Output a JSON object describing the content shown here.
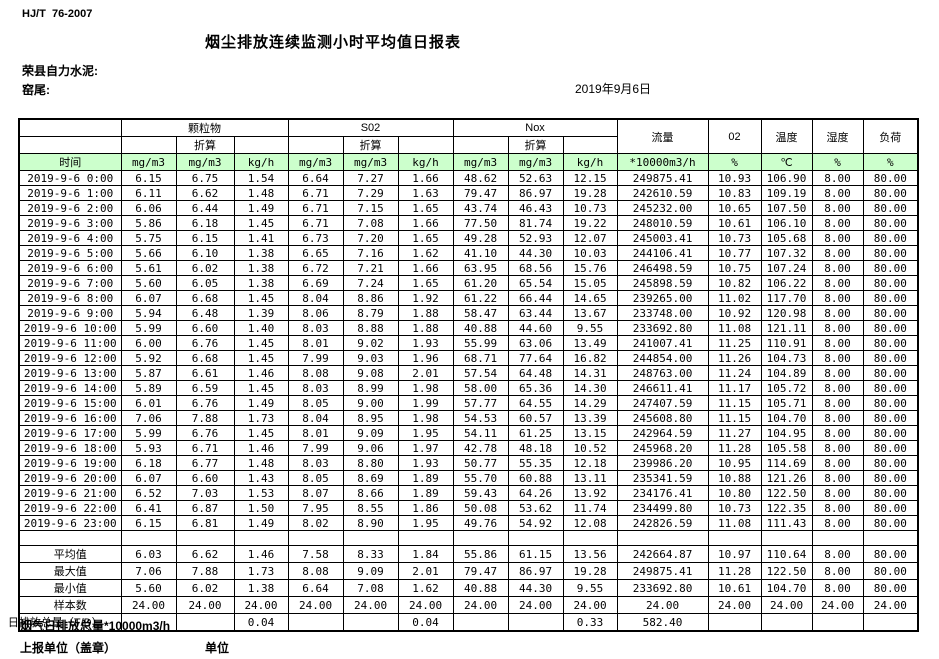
{
  "page": {
    "standard_code": "HJ/T  76-2007",
    "title": "烟尘排放连续监测小时平均值日报表",
    "company": "荣县自力水泥:",
    "stack": "窑尾:",
    "date": "2019年9月6日"
  },
  "table": {
    "time_header": "时间",
    "converted_label": "折算",
    "groups": [
      {
        "label": "颗粒物"
      },
      {
        "label": "S02"
      },
      {
        "label": "Nox"
      }
    ],
    "right_headers": [
      "流量",
      "02",
      "温度",
      "湿度",
      "负荷"
    ],
    "units": [
      "mg/m3",
      "mg/m3",
      "kg/h",
      "mg/m3",
      "mg/m3",
      "kg/h",
      "mg/m3",
      "mg/m3",
      "kg/h",
      "*10000m3/h",
      "%",
      "℃",
      "%",
      "%"
    ],
    "rows": [
      {
        "time": "2019-9-6 0:00",
        "values": [
          "6.15",
          "6.75",
          "1.54",
          "6.64",
          "7.27",
          "1.66",
          "48.62",
          "52.63",
          "12.15",
          "249875.41",
          "10.93",
          "106.90",
          "8.00",
          "80.00"
        ]
      },
      {
        "time": "2019-9-6 1:00",
        "values": [
          "6.11",
          "6.62",
          "1.48",
          "6.71",
          "7.29",
          "1.63",
          "79.47",
          "86.97",
          "19.28",
          "242610.59",
          "10.83",
          "109.19",
          "8.00",
          "80.00"
        ]
      },
      {
        "time": "2019-9-6 2:00",
        "values": [
          "6.06",
          "6.44",
          "1.49",
          "6.71",
          "7.15",
          "1.65",
          "43.74",
          "46.43",
          "10.73",
          "245232.00",
          "10.65",
          "107.50",
          "8.00",
          "80.00"
        ]
      },
      {
        "time": "2019-9-6 3:00",
        "values": [
          "5.86",
          "6.18",
          "1.45",
          "6.71",
          "7.08",
          "1.66",
          "77.50",
          "81.74",
          "19.22",
          "248010.59",
          "10.61",
          "106.10",
          "8.00",
          "80.00"
        ]
      },
      {
        "time": "2019-9-6 4:00",
        "values": [
          "5.75",
          "6.15",
          "1.41",
          "6.73",
          "7.20",
          "1.65",
          "49.28",
          "52.93",
          "12.07",
          "245003.41",
          "10.73",
          "105.68",
          "8.00",
          "80.00"
        ]
      },
      {
        "time": "2019-9-6 5:00",
        "values": [
          "5.66",
          "6.10",
          "1.38",
          "6.65",
          "7.16",
          "1.62",
          "41.10",
          "44.30",
          "10.03",
          "244106.41",
          "10.77",
          "107.32",
          "8.00",
          "80.00"
        ]
      },
      {
        "time": "2019-9-6 6:00",
        "values": [
          "5.61",
          "6.02",
          "1.38",
          "6.72",
          "7.21",
          "1.66",
          "63.95",
          "68.56",
          "15.76",
          "246498.59",
          "10.75",
          "107.24",
          "8.00",
          "80.00"
        ]
      },
      {
        "time": "2019-9-6 7:00",
        "values": [
          "5.60",
          "6.05",
          "1.38",
          "6.69",
          "7.24",
          "1.65",
          "61.20",
          "65.54",
          "15.05",
          "245898.59",
          "10.82",
          "106.22",
          "8.00",
          "80.00"
        ]
      },
      {
        "time": "2019-9-6 8:00",
        "values": [
          "6.07",
          "6.68",
          "1.45",
          "8.04",
          "8.86",
          "1.92",
          "61.22",
          "66.44",
          "14.65",
          "239265.00",
          "11.02",
          "117.70",
          "8.00",
          "80.00"
        ]
      },
      {
        "time": "2019-9-6 9:00",
        "values": [
          "5.94",
          "6.48",
          "1.39",
          "8.06",
          "8.79",
          "1.88",
          "58.47",
          "63.44",
          "13.67",
          "233748.00",
          "10.92",
          "120.98",
          "8.00",
          "80.00"
        ]
      },
      {
        "time": "2019-9-6 10:00",
        "values": [
          "5.99",
          "6.60",
          "1.40",
          "8.03",
          "8.88",
          "1.88",
          "40.88",
          "44.60",
          "9.55",
          "233692.80",
          "11.08",
          "121.11",
          "8.00",
          "80.00"
        ]
      },
      {
        "time": "2019-9-6 11:00",
        "values": [
          "6.00",
          "6.76",
          "1.45",
          "8.01",
          "9.02",
          "1.93",
          "55.99",
          "63.06",
          "13.49",
          "241007.41",
          "11.25",
          "110.91",
          "8.00",
          "80.00"
        ]
      },
      {
        "time": "2019-9-6 12:00",
        "values": [
          "5.92",
          "6.68",
          "1.45",
          "7.99",
          "9.03",
          "1.96",
          "68.71",
          "77.64",
          "16.82",
          "244854.00",
          "11.26",
          "104.73",
          "8.00",
          "80.00"
        ]
      },
      {
        "time": "2019-9-6 13:00",
        "values": [
          "5.87",
          "6.61",
          "1.46",
          "8.08",
          "9.08",
          "2.01",
          "57.54",
          "64.48",
          "14.31",
          "248763.00",
          "11.24",
          "104.89",
          "8.00",
          "80.00"
        ]
      },
      {
        "time": "2019-9-6 14:00",
        "values": [
          "5.89",
          "6.59",
          "1.45",
          "8.03",
          "8.99",
          "1.98",
          "58.00",
          "65.36",
          "14.30",
          "246611.41",
          "11.17",
          "105.72",
          "8.00",
          "80.00"
        ]
      },
      {
        "time": "2019-9-6 15:00",
        "values": [
          "6.01",
          "6.76",
          "1.49",
          "8.05",
          "9.00",
          "1.99",
          "57.77",
          "64.55",
          "14.29",
          "247407.59",
          "11.15",
          "105.71",
          "8.00",
          "80.00"
        ]
      },
      {
        "time": "2019-9-6 16:00",
        "values": [
          "7.06",
          "7.88",
          "1.73",
          "8.04",
          "8.95",
          "1.98",
          "54.53",
          "60.57",
          "13.39",
          "245608.80",
          "11.15",
          "104.70",
          "8.00",
          "80.00"
        ]
      },
      {
        "time": "2019-9-6 17:00",
        "values": [
          "5.99",
          "6.76",
          "1.45",
          "8.01",
          "9.09",
          "1.95",
          "54.11",
          "61.25",
          "13.15",
          "242964.59",
          "11.27",
          "104.95",
          "8.00",
          "80.00"
        ]
      },
      {
        "time": "2019-9-6 18:00",
        "values": [
          "5.93",
          "6.71",
          "1.46",
          "7.99",
          "9.06",
          "1.97",
          "42.78",
          "48.18",
          "10.52",
          "245968.20",
          "11.28",
          "105.58",
          "8.00",
          "80.00"
        ]
      },
      {
        "time": "2019-9-6 19:00",
        "values": [
          "6.18",
          "6.77",
          "1.48",
          "8.03",
          "8.80",
          "1.93",
          "50.77",
          "55.35",
          "12.18",
          "239986.20",
          "10.95",
          "114.69",
          "8.00",
          "80.00"
        ]
      },
      {
        "time": "2019-9-6 20:00",
        "values": [
          "6.07",
          "6.60",
          "1.43",
          "8.05",
          "8.69",
          "1.89",
          "55.70",
          "60.88",
          "13.11",
          "235341.59",
          "10.88",
          "121.26",
          "8.00",
          "80.00"
        ]
      },
      {
        "time": "2019-9-6 21:00",
        "values": [
          "6.52",
          "7.03",
          "1.53",
          "8.07",
          "8.66",
          "1.89",
          "59.43",
          "64.26",
          "13.92",
          "234176.41",
          "10.80",
          "122.50",
          "8.00",
          "80.00"
        ]
      },
      {
        "time": "2019-9-6 22:00",
        "values": [
          "6.41",
          "6.87",
          "1.50",
          "7.95",
          "8.55",
          "1.86",
          "50.08",
          "53.62",
          "11.74",
          "234499.80",
          "10.73",
          "122.35",
          "8.00",
          "80.00"
        ]
      },
      {
        "time": "2019-9-6 23:00",
        "values": [
          "6.15",
          "6.81",
          "1.49",
          "8.02",
          "8.90",
          "1.95",
          "49.76",
          "54.92",
          "12.08",
          "242826.59",
          "11.08",
          "111.43",
          "8.00",
          "80.00"
        ]
      }
    ],
    "summary": [
      {
        "label": "平均值",
        "values": [
          "6.03",
          "6.62",
          "1.46",
          "7.58",
          "8.33",
          "1.84",
          "55.86",
          "61.15",
          "13.56",
          "242664.87",
          "10.97",
          "110.64",
          "8.00",
          "80.00"
        ]
      },
      {
        "label": "最大值",
        "values": [
          "7.06",
          "7.88",
          "1.73",
          "8.08",
          "9.09",
          "2.01",
          "79.47",
          "86.97",
          "19.28",
          "249875.41",
          "11.28",
          "122.50",
          "8.00",
          "80.00"
        ]
      },
      {
        "label": "最小值",
        "values": [
          "5.60",
          "6.02",
          "1.38",
          "6.64",
          "7.08",
          "1.62",
          "40.88",
          "44.30",
          "9.55",
          "233692.80",
          "10.61",
          "104.70",
          "8.00",
          "80.00"
        ]
      },
      {
        "label": "样本数",
        "values": [
          "24.00",
          "24.00",
          "24.00",
          "24.00",
          "24.00",
          "24.00",
          "24.00",
          "24.00",
          "24.00",
          "24.00",
          "24.00",
          "24.00",
          "24.00",
          "24.00"
        ]
      }
    ],
    "total_row": {
      "label": "日排放总量（T/D）",
      "values": [
        "",
        "",
        "0.04",
        "",
        "",
        "0.04",
        "",
        "",
        "0.33",
        "582.40",
        "",
        "",
        "",
        ""
      ]
    }
  },
  "footer": {
    "line1": "烟气日排放总量*10000m3/h",
    "line2_left": "上报单位（盖章）",
    "line2_right": "单位"
  },
  "colors": {
    "header_green": "#ccffcc"
  }
}
